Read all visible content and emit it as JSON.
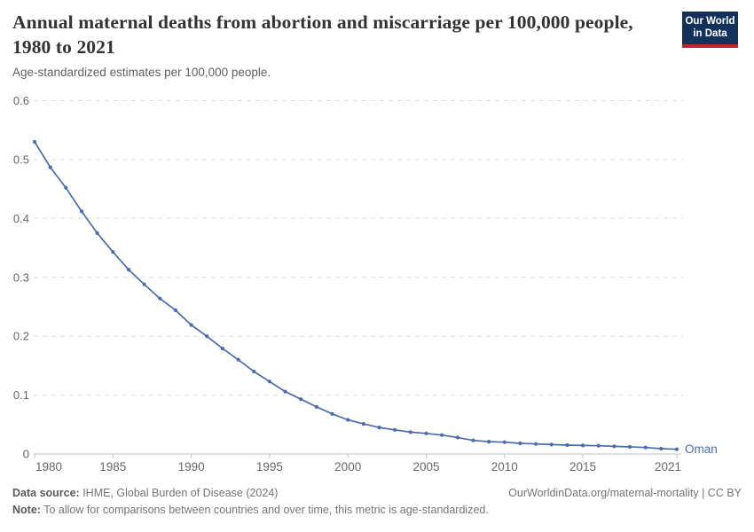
{
  "header": {
    "title": "Annual maternal deaths from abortion and miscarriage per 100,000 people, 1980 to 2021",
    "subtitle": "Age-standardized estimates per 100,000 people.",
    "logo": {
      "line1": "Our World",
      "line2": "in Data",
      "bg_color": "#12325c",
      "accent_color": "#c0262c"
    }
  },
  "chart_data": {
    "type": "line",
    "title": "Annual maternal deaths from abortion and miscarriage per 100,000 people, 1980 to 2021",
    "subtitle": "Age-standardized estimates per 100,000 people.",
    "xlabel": "",
    "ylabel": "",
    "xlim": [
      1980,
      2021
    ],
    "ylim": [
      0,
      0.6
    ],
    "grid": "horizontal-dashed",
    "legend_position": "end-of-line-label",
    "x_ticks": [
      1980,
      1985,
      1990,
      1995,
      2000,
      2005,
      2010,
      2015,
      2021
    ],
    "y_ticks": [
      0,
      0.1,
      0.2,
      0.3,
      0.4,
      0.5,
      0.6
    ],
    "years": [
      1980,
      1981,
      1982,
      1983,
      1984,
      1985,
      1986,
      1987,
      1988,
      1989,
      1990,
      1991,
      1992,
      1993,
      1994,
      1995,
      1996,
      1997,
      1998,
      1999,
      2000,
      2001,
      2002,
      2003,
      2004,
      2005,
      2006,
      2007,
      2008,
      2009,
      2010,
      2011,
      2012,
      2013,
      2014,
      2015,
      2016,
      2017,
      2018,
      2019,
      2020,
      2021
    ],
    "series": [
      {
        "name": "Oman",
        "color": "#4c6bab",
        "values": [
          0.53,
          0.487,
          0.452,
          0.412,
          0.375,
          0.343,
          0.313,
          0.288,
          0.264,
          0.244,
          0.219,
          0.2,
          0.179,
          0.16,
          0.14,
          0.123,
          0.106,
          0.093,
          0.08,
          0.068,
          0.058,
          0.051,
          0.045,
          0.041,
          0.037,
          0.035,
          0.032,
          0.028,
          0.023,
          0.021,
          0.02,
          0.018,
          0.017,
          0.016,
          0.015,
          0.0145,
          0.014,
          0.013,
          0.012,
          0.011,
          0.009,
          0.008
        ]
      }
    ],
    "colors": {
      "grid": "#dddddd",
      "axis": "#c2c2c2",
      "tick_text": "#666666"
    }
  },
  "footer": {
    "datasource_label": "Data source:",
    "datasource_value": " IHME, Global Burden of Disease (2024)",
    "link": "OurWorldinData.org/maternal-mortality | CC BY",
    "note_label": "Note:",
    "note_value": " To allow for comparisons between countries and over time, this metric is age-standardized."
  }
}
